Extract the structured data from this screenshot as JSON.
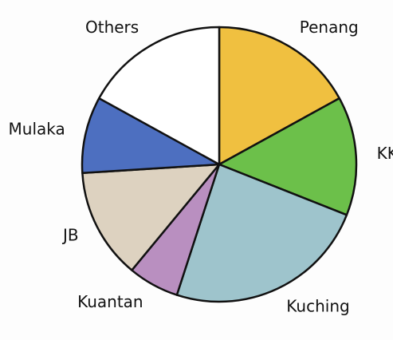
{
  "chart_data": {
    "type": "pie",
    "categories": [
      "Penang",
      "KK",
      "Kuching",
      "Kuantan",
      "JB",
      "Mulaka",
      "Others"
    ],
    "values": [
      17,
      14,
      24,
      6,
      13,
      9,
      17
    ],
    "colors": [
      "#f0c040",
      "#6cc04a",
      "#9ec4cc",
      "#b98fc0",
      "#ddd2c0",
      "#4d6fc0",
      "#ffffff"
    ]
  }
}
